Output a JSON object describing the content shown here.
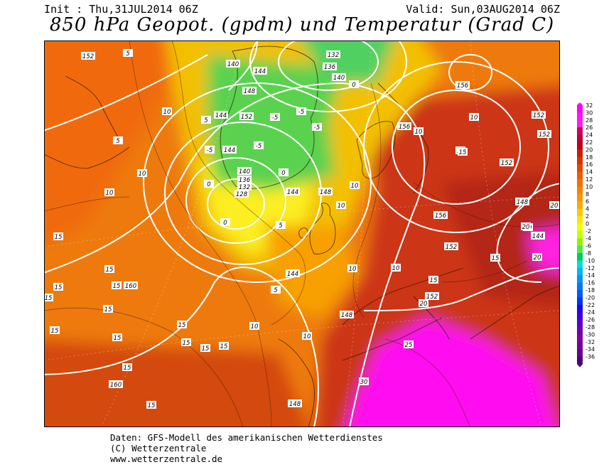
{
  "header": {
    "init": "Init : Thu,31JUL2014 06Z",
    "valid": "Valid: Sun,03AUG2014 06Z",
    "title": "850 hPa Geopot. (gpdm) und Temperatur (Grad C)"
  },
  "legend": {
    "values": [
      "32",
      "30",
      "28",
      "26",
      "24",
      "22",
      "20",
      "18",
      "16",
      "14",
      "12",
      "10",
      "8",
      "6",
      "4",
      "2",
      "0",
      "-2",
      "-4",
      "-6",
      "-8",
      "-10",
      "-12",
      "-14",
      "-16",
      "-18",
      "-20",
      "-22",
      "-24",
      "-26",
      "-28",
      "-30",
      "-32",
      "-34",
      "-36"
    ],
    "colors": [
      "#ff00ff",
      "#ff14ff",
      "#ff1ee6",
      "#d2005a",
      "#b4003c",
      "#be0014",
      "#c81e00",
      "#d73200",
      "#e64600",
      "#f05a00",
      "#f56e00",
      "#f78200",
      "#f89600",
      "#faaa00",
      "#fcc800",
      "#fce600",
      "#f0ff00",
      "#c8ff00",
      "#96f000",
      "#50e650",
      "#00c864",
      "#00dcdc",
      "#00b4ff",
      "#0096ff",
      "#0078ff",
      "#005aff",
      "#0032ff",
      "#1e00ff",
      "#3c00e6",
      "#5a00c8",
      "#6e00b4",
      "#8200a0",
      "#780096",
      "#64008c",
      "#500078"
    ]
  },
  "map_labels": {
    "geopotential": [
      "152",
      "5",
      "140",
      "144",
      "148",
      "140",
      "132",
      "136",
      "140",
      "144",
      "152",
      "144",
      "156",
      "152",
      "160",
      "148",
      "148",
      "152",
      "152",
      "152",
      "140",
      "144",
      "128",
      "132",
      "136",
      "144",
      "156",
      "156",
      "160",
      "152",
      "148",
      "144",
      "148"
    ],
    "temperature": [
      "5",
      "10",
      "5",
      "5",
      "-5",
      "-5",
      "-5",
      "0",
      "-5",
      "-5",
      "0",
      "0",
      "0",
      "5",
      "10",
      "15",
      "15",
      "10",
      "10",
      "15",
      "15",
      "15",
      "20",
      "20",
      "15",
      "15",
      "15",
      "15",
      "10",
      "15",
      "15",
      "10",
      "20",
      "15",
      "10",
      "20",
      "10",
      "15",
      "25",
      "30",
      "20",
      "10",
      "15",
      "15",
      "5",
      "10",
      "10",
      "15",
      "15",
      "15"
    ]
  },
  "footer": {
    "line1": "Daten: GFS-Modell des amerikanischen Wetterdienstes",
    "line2": "(C) Wetterzentrale",
    "line3": "www.wetterzentrale.de"
  }
}
